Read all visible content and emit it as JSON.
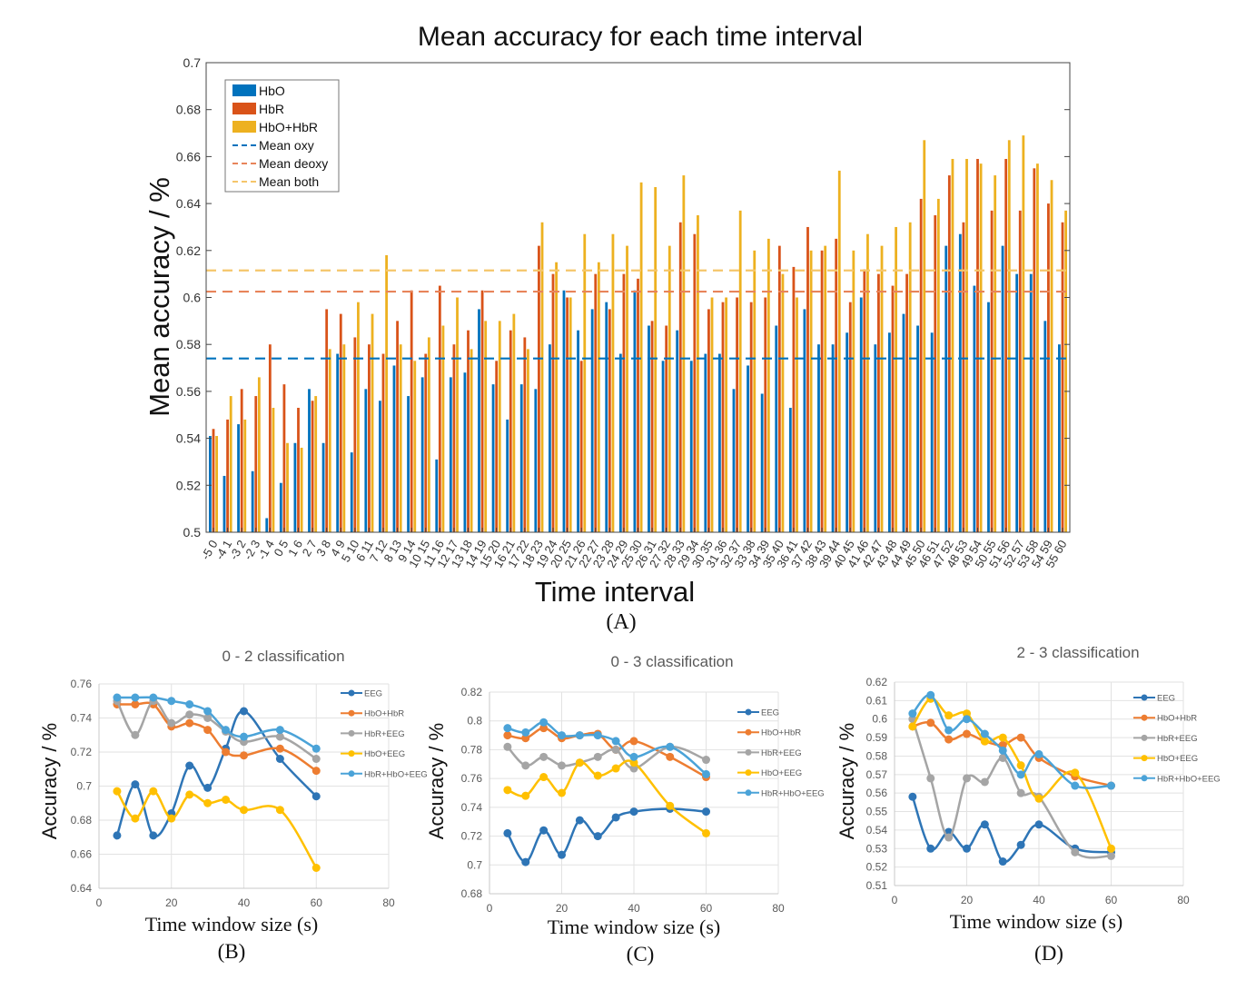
{
  "chart_data": [
    {
      "type": "bar",
      "title": "Mean accuracy for each time interval",
      "xlabel": "Time interval",
      "ylabel": "Mean accuracy / %",
      "panel_label": "(A)",
      "ylim": [
        0.5,
        0.7
      ],
      "yticks": [
        "0.5",
        "0.52",
        "0.54",
        "0.56",
        "0.58",
        "0.6",
        "0.62",
        "0.64",
        "0.66",
        "0.68",
        "0.7"
      ],
      "grid": false,
      "legend_position": "top-left",
      "categories": [
        "-5 0",
        "-4 1",
        "-3 2",
        "-2 3",
        "-1 4",
        "0 5",
        "1 6",
        "2 7",
        "3 8",
        "4 9",
        "5 10",
        "6 11",
        "7 12",
        "8 13",
        "9 14",
        "10 15",
        "11 16",
        "12 17",
        "13 18",
        "14 19",
        "15 20",
        "16 21",
        "17 22",
        "18 23",
        "19 24",
        "20 25",
        "21 26",
        "22 27",
        "23 28",
        "24 29",
        "25 30",
        "26 31",
        "27 32",
        "28 33",
        "29 34",
        "30 35",
        "31 36",
        "32 37",
        "33 38",
        "34 39",
        "35 40",
        "36 41",
        "37 42",
        "38 43",
        "39 44",
        "40 45",
        "41 46",
        "42 47",
        "43 48",
        "44 49",
        "45 50",
        "46 51",
        "47 52",
        "48 53",
        "49 54",
        "50 55",
        "51 56",
        "52 57",
        "53 58",
        "54 59",
        "55 60"
      ],
      "series": [
        {
          "name": "HbO",
          "color": "#0072BD",
          "values": [
            0.541,
            0.524,
            0.546,
            0.526,
            0.506,
            0.521,
            0.538,
            0.561,
            0.538,
            0.576,
            0.534,
            0.561,
            0.556,
            0.571,
            0.558,
            0.566,
            0.531,
            0.566,
            0.568,
            0.595,
            0.563,
            0.548,
            0.563,
            0.561,
            0.58,
            0.603,
            0.586,
            0.595,
            0.598,
            0.576,
            0.603,
            0.588,
            0.573,
            0.586,
            0.573,
            0.576,
            0.576,
            0.561,
            0.571,
            0.559,
            0.588,
            0.553,
            0.595,
            0.58,
            0.58,
            0.585,
            0.6,
            0.58,
            0.585,
            0.593,
            0.588,
            0.585,
            0.622,
            0.627,
            0.605,
            0.598,
            0.622,
            0.61,
            0.61,
            0.59,
            0.58
          ]
        },
        {
          "name": "HbR",
          "color": "#D95319",
          "values": [
            0.544,
            0.548,
            0.561,
            0.558,
            0.58,
            0.563,
            0.553,
            0.556,
            0.595,
            0.593,
            0.583,
            0.58,
            0.576,
            0.59,
            0.603,
            0.576,
            0.605,
            0.58,
            0.586,
            0.603,
            0.573,
            0.586,
            0.583,
            0.622,
            0.61,
            0.6,
            0.573,
            0.61,
            0.595,
            0.61,
            0.608,
            0.59,
            0.588,
            0.632,
            0.627,
            0.595,
            0.598,
            0.6,
            0.598,
            0.6,
            0.622,
            0.613,
            0.63,
            0.62,
            0.625,
            0.598,
            0.612,
            0.61,
            0.605,
            0.61,
            0.642,
            0.635,
            0.652,
            0.632,
            0.659,
            0.637,
            0.659,
            0.637,
            0.655,
            0.64,
            0.632
          ]
        },
        {
          "name": "HbO+HbR",
          "color": "#EDB120",
          "values": [
            0.541,
            0.558,
            0.548,
            0.566,
            0.553,
            0.538,
            0.536,
            0.558,
            0.578,
            0.58,
            0.598,
            0.593,
            0.618,
            0.58,
            0.573,
            0.583,
            0.588,
            0.6,
            0.578,
            0.59,
            0.59,
            0.593,
            0.578,
            0.632,
            0.615,
            0.6,
            0.627,
            0.615,
            0.627,
            0.622,
            0.649,
            0.647,
            0.622,
            0.652,
            0.635,
            0.6,
            0.6,
            0.637,
            0.62,
            0.625,
            0.61,
            0.6,
            0.62,
            0.622,
            0.654,
            0.62,
            0.627,
            0.622,
            0.63,
            0.632,
            0.667,
            0.642,
            0.659,
            0.659,
            0.657,
            0.652,
            0.667,
            0.669,
            0.657,
            0.65,
            0.637
          ]
        }
      ],
      "reference_lines": [
        {
          "name": "Mean oxy",
          "color": "#0072BD",
          "value": 0.574
        },
        {
          "name": "Mean deoxy",
          "color": "#E8845A",
          "value": 0.6025
        },
        {
          "name": "Mean both",
          "color": "#F5C66A",
          "value": 0.6115
        }
      ]
    },
    {
      "type": "line",
      "title": "0 - 2 classification",
      "xlabel": "Time window  size (s)",
      "ylabel": "Accuracy / %",
      "panel_label": "(B)",
      "xlim": [
        0,
        80
      ],
      "ylim": [
        0.64,
        0.76
      ],
      "xticks": [
        "0",
        "20",
        "40",
        "60",
        "80"
      ],
      "yticks": [
        "0.64",
        "0.66",
        "0.68",
        "0.7",
        "0.72",
        "0.74",
        "0.76"
      ],
      "grid": true,
      "legend_position": "right",
      "x": [
        5,
        10,
        15,
        20,
        25,
        30,
        35,
        40,
        50,
        60
      ],
      "series": [
        {
          "name": "EEG",
          "color": "#2E75B6",
          "values": [
            0.671,
            0.701,
            0.671,
            0.684,
            0.712,
            0.699,
            0.722,
            0.744,
            0.716,
            0.694
          ]
        },
        {
          "name": "HbO+HbR",
          "color": "#ED7D31",
          "values": [
            0.748,
            0.748,
            0.748,
            0.735,
            0.737,
            0.733,
            0.72,
            0.718,
            0.722,
            0.709
          ]
        },
        {
          "name": "HbR+EEG",
          "color": "#A5A5A5",
          "values": [
            0.75,
            0.73,
            0.75,
            0.737,
            0.742,
            0.74,
            0.732,
            0.726,
            0.729,
            0.716
          ]
        },
        {
          "name": "HbO+EEG",
          "color": "#FFC000",
          "values": [
            0.697,
            0.681,
            0.697,
            0.681,
            0.695,
            0.69,
            0.692,
            0.686,
            0.686,
            0.652
          ]
        },
        {
          "name": "HbR+HbO+EEG",
          "color": "#4BA3D8",
          "values": [
            0.752,
            0.752,
            0.752,
            0.75,
            0.748,
            0.744,
            0.733,
            0.729,
            0.733,
            0.722
          ]
        }
      ]
    },
    {
      "type": "line",
      "title": "0 - 3 classification",
      "xlabel": "Time window  size (s)",
      "ylabel": "Accuracy / %",
      "panel_label": "(C)",
      "xlim": [
        0,
        80
      ],
      "ylim": [
        0.68,
        0.82
      ],
      "xticks": [
        "0",
        "20",
        "40",
        "60",
        "80"
      ],
      "yticks": [
        "0.68",
        "0.7",
        "0.72",
        "0.74",
        "0.76",
        "0.78",
        "0.8",
        "0.82"
      ],
      "grid": true,
      "legend_position": "right",
      "x": [
        5,
        10,
        15,
        20,
        25,
        30,
        35,
        40,
        50,
        60
      ],
      "series": [
        {
          "name": "EEG",
          "color": "#2E75B6",
          "values": [
            0.722,
            0.702,
            0.724,
            0.707,
            0.731,
            0.72,
            0.733,
            0.737,
            0.739,
            0.737
          ]
        },
        {
          "name": "HbO+HbR",
          "color": "#ED7D31",
          "values": [
            0.79,
            0.788,
            0.795,
            0.788,
            0.79,
            0.791,
            0.78,
            0.786,
            0.775,
            0.761
          ]
        },
        {
          "name": "HbR+EEG",
          "color": "#A5A5A5",
          "values": [
            0.782,
            0.769,
            0.775,
            0.769,
            0.771,
            0.775,
            0.78,
            0.767,
            0.782,
            0.773
          ]
        },
        {
          "name": "HbO+EEG",
          "color": "#FFC000",
          "values": [
            0.752,
            0.748,
            0.761,
            0.75,
            0.771,
            0.762,
            0.767,
            0.771,
            0.741,
            0.722
          ]
        },
        {
          "name": "HbR+HbO+EEG",
          "color": "#4BA3D8",
          "values": [
            0.795,
            0.792,
            0.799,
            0.79,
            0.79,
            0.79,
            0.786,
            0.775,
            0.782,
            0.763
          ]
        }
      ]
    },
    {
      "type": "line",
      "title": "2 - 3 classification",
      "xlabel": "Time window  size (s)",
      "ylabel": "Accuracy / %",
      "panel_label": "(D)",
      "xlim": [
        0,
        80
      ],
      "ylim": [
        0.51,
        0.62
      ],
      "xticks": [
        "0",
        "20",
        "40",
        "60",
        "80"
      ],
      "yticks": [
        "0.51",
        "0.52",
        "0.53",
        "0.54",
        "0.55",
        "0.56",
        "0.57",
        "0.58",
        "0.59",
        "0.6",
        "0.61",
        "0.62"
      ],
      "grid": true,
      "legend_position": "right",
      "x": [
        5,
        10,
        15,
        20,
        25,
        30,
        35,
        40,
        50,
        60
      ],
      "series": [
        {
          "name": "EEG",
          "color": "#2E75B6",
          "values": [
            0.558,
            0.53,
            0.539,
            0.53,
            0.543,
            0.523,
            0.532,
            0.543,
            0.53,
            0.528
          ]
        },
        {
          "name": "HbO+HbR",
          "color": "#ED7D31",
          "values": [
            0.596,
            0.598,
            0.589,
            0.592,
            0.588,
            0.586,
            0.59,
            0.579,
            0.569,
            0.564
          ]
        },
        {
          "name": "HbR+EEG",
          "color": "#A5A5A5",
          "values": [
            0.6,
            0.568,
            0.536,
            0.568,
            0.566,
            0.579,
            0.56,
            0.558,
            0.528,
            0.526
          ]
        },
        {
          "name": "HbO+EEG",
          "color": "#FFC000",
          "values": [
            0.596,
            0.611,
            0.602,
            0.603,
            0.588,
            0.59,
            0.575,
            0.557,
            0.571,
            0.53
          ]
        },
        {
          "name": "HbR+HbO+EEG",
          "color": "#4BA3D8",
          "values": [
            0.603,
            0.613,
            0.594,
            0.6,
            0.592,
            0.583,
            0.57,
            0.581,
            0.564,
            0.564
          ]
        }
      ]
    }
  ]
}
